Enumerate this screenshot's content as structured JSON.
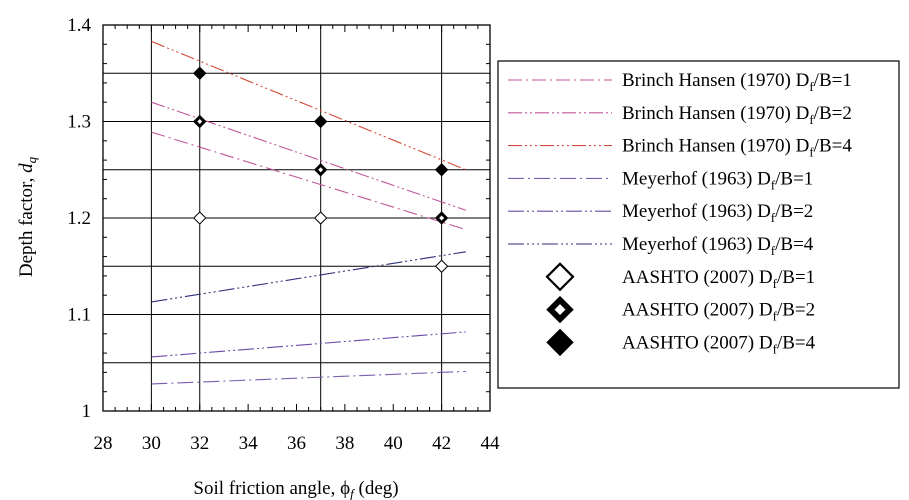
{
  "chart_data": {
    "type": "line",
    "xlabel": "Soil friction angle, ϕf (deg)",
    "xlabel_main": "Soil friction angle, ",
    "xlabel_symbol": "ϕ",
    "xlabel_sub": "f",
    "xlabel_unit": " (deg)",
    "ylabel": "Depth factor, dq",
    "ylabel_main": "Depth factor, ",
    "ylabel_symbol": "d",
    "ylabel_sub": "q",
    "xlim": [
      28,
      44
    ],
    "ylim": [
      1.0,
      1.4
    ],
    "xticks": [
      28,
      30,
      32,
      34,
      36,
      38,
      40,
      42,
      44
    ],
    "yticks": [
      1,
      1.1,
      1.2,
      1.3,
      1.4
    ],
    "xtick_labels": [
      "28",
      "30",
      "32",
      "34",
      "36",
      "38",
      "40",
      "42",
      "44"
    ],
    "ytick_labels": [
      "1",
      "1.1",
      "1.2",
      "1.3",
      "1.4"
    ],
    "xgrid": [
      30,
      32,
      37,
      42
    ],
    "ygrid": [
      1.05,
      1.1,
      1.15,
      1.2,
      1.25,
      1.3,
      1.35
    ],
    "grid": true,
    "legend_position": "right",
    "series": [
      {
        "name": "Brinch Hansen (1970) Df/B=1",
        "label_main": "Brinch Hansen (1970) D",
        "label_sub": "f",
        "label_tail": "/B=1",
        "kind": "line",
        "color": "#c0569a",
        "dash": "14 4 2 4",
        "x": [
          30,
          43
        ],
        "y": [
          1.289,
          1.188
        ]
      },
      {
        "name": "Brinch Hansen (1970) Df/B=2",
        "label_main": "Brinch Hansen (1970) D",
        "label_sub": "f",
        "label_tail": "/B=2",
        "kind": "line",
        "color": "#c0569a",
        "dash": "14 3 2 3 2 3",
        "x": [
          30,
          43
        ],
        "y": [
          1.32,
          1.208
        ]
      },
      {
        "name": "Brinch Hansen (1970) Df/B=4",
        "label_main": "Brinch Hansen (1970) D",
        "label_sub": "f",
        "label_tail": "/B=4",
        "kind": "line",
        "color": "#d44a3a",
        "dash": "14 3 2 3 2 3 2 3",
        "x": [
          30,
          43
        ],
        "y": [
          1.383,
          1.25
        ]
      },
      {
        "name": "Meyerhof (1963) Df/B=1",
        "label_main": "Meyerhof (1963) D",
        "label_sub": "f",
        "label_tail": "/B=1",
        "kind": "line",
        "color": "#7a5fb0",
        "dash": "16 4 2 4",
        "x": [
          30,
          43
        ],
        "y": [
          1.028,
          1.041
        ]
      },
      {
        "name": "Meyerhof (1963) Df/B=2",
        "label_main": "Meyerhof (1963) D",
        "label_sub": "f",
        "label_tail": "/B=2",
        "kind": "line",
        "color": "#6a4aa8",
        "dash": "16 3 2 3 2 3",
        "x": [
          30,
          43
        ],
        "y": [
          1.056,
          1.082
        ]
      },
      {
        "name": "Meyerhof (1963) Df/B=4",
        "label_main": "Meyerhof (1963) D",
        "label_sub": "f",
        "label_tail": "/B=4",
        "kind": "line",
        "color": "#2e2e7a",
        "dash": "16 3 2 3 2 3 2 3",
        "x": [
          30,
          43
        ],
        "y": [
          1.113,
          1.165
        ]
      },
      {
        "name": "AASHTO (2007) Df/B=1",
        "label_main": "AASHTO (2007) D",
        "label_sub": "f",
        "label_tail": "/B=1",
        "kind": "marker",
        "marker": "diamond-open",
        "x": [
          32,
          37,
          42
        ],
        "y": [
          1.2,
          1.2,
          1.15
        ]
      },
      {
        "name": "AASHTO (2007) Df/B=2",
        "label_main": "AASHTO (2007) D",
        "label_sub": "f",
        "label_tail": "/B=2",
        "kind": "marker",
        "marker": "diamond-dot",
        "x": [
          32,
          37,
          42
        ],
        "y": [
          1.3,
          1.25,
          1.2
        ]
      },
      {
        "name": "AASHTO (2007) Df/B=4",
        "label_main": "AASHTO (2007) D",
        "label_sub": "f",
        "label_tail": "/B=4",
        "kind": "marker",
        "marker": "diamond-filled",
        "x": [
          32,
          37,
          42
        ],
        "y": [
          1.35,
          1.3,
          1.25
        ]
      }
    ]
  }
}
